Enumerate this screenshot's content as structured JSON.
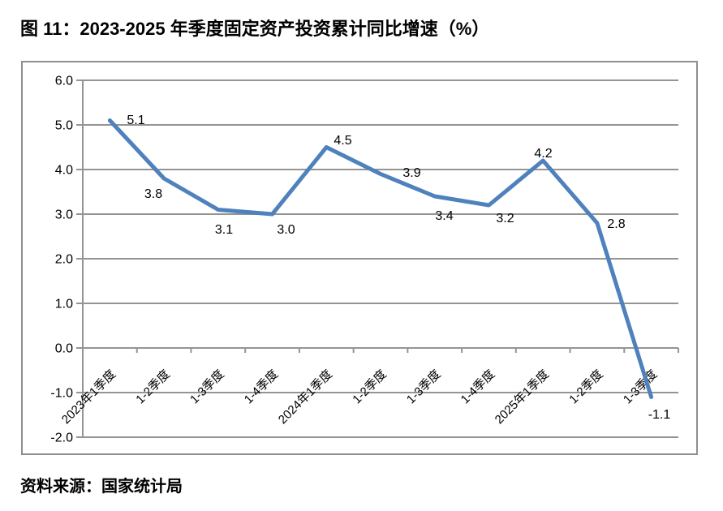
{
  "title": "图 11：2023-2025 年季度固定资产投资累计同比增速（%）",
  "source": "资料来源：国家统计局",
  "chart_data": {
    "type": "line",
    "categories": [
      "2023年1季度",
      "1-2季度",
      "1-3季度",
      "1-4季度",
      "2024年1季度",
      "1-2季度",
      "1-3季度",
      "1-4季度",
      "2025年1季度",
      "1-2季度",
      "1-3季度"
    ],
    "values": [
      5.1,
      3.8,
      3.1,
      3.0,
      4.5,
      3.9,
      3.4,
      3.2,
      4.2,
      2.8,
      -1.1
    ],
    "data_labels": [
      "5.1",
      "3.8",
      "3.1",
      "3.0",
      "4.5",
      "3.9",
      "3.4",
      "3.2",
      "4.2",
      "2.8",
      "-1.1"
    ],
    "title": "2023-2025 年季度固定资产投资累计同比增速（%）",
    "xlabel": "",
    "ylabel": "",
    "ylim": [
      -2.0,
      6.0
    ],
    "ytick_step": 1.0,
    "ytick_labels": [
      "6.0",
      "5.0",
      "4.0",
      "3.0",
      "2.0",
      "1.0",
      "0.0",
      "-1.0",
      "-2.0"
    ],
    "grid": true,
    "legend": "none",
    "line_color": "#4F81BD",
    "grid_color": "#949494",
    "axis_color": "#8f8f8f",
    "label_color": "#000000"
  }
}
